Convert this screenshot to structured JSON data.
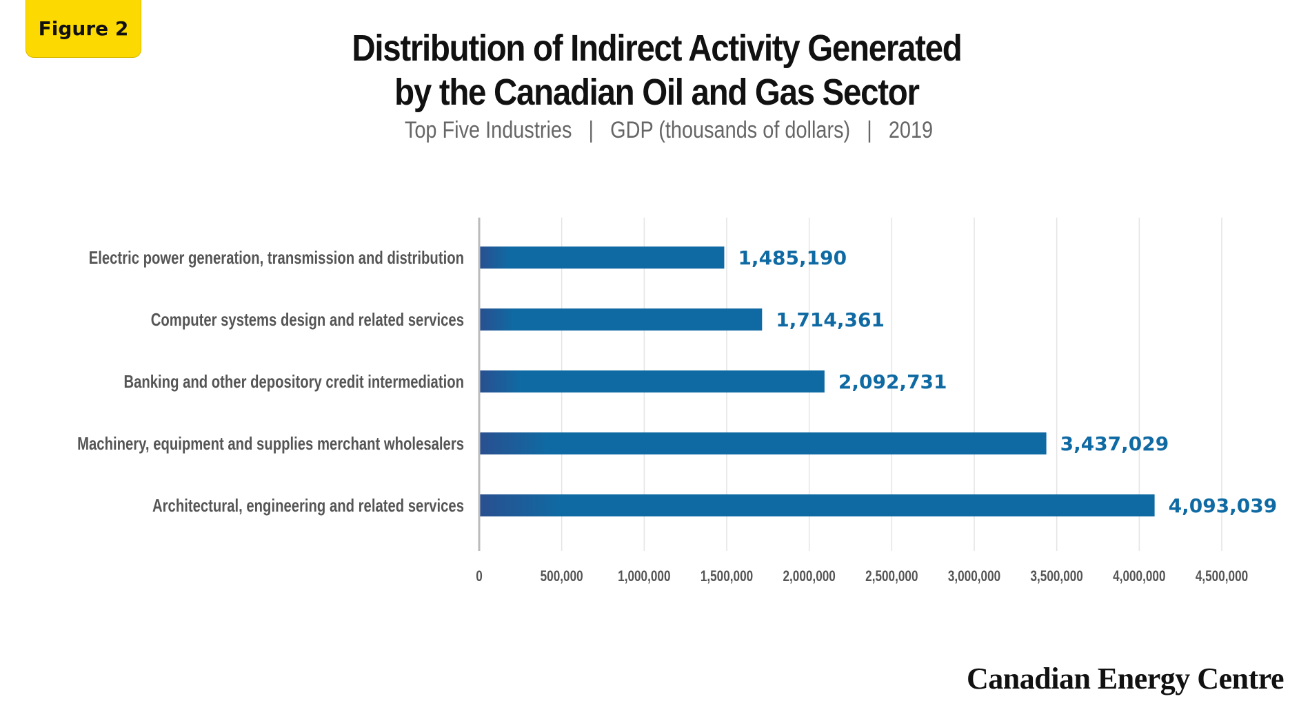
{
  "badge": "Figure 2",
  "title_line1": "Distribution of Indirect Activity Generated",
  "title_line2": "by the Canadian Oil and Gas Sector",
  "subtitle": "Top Five Industries   |   GDP (thousands of dollars)   |   2019",
  "brand": "Canadian Energy Centre",
  "chart_data": {
    "type": "bar",
    "orientation": "horizontal",
    "categories": [
      "Electric power generation, transmission and distribution",
      "Computer systems design and related services",
      "Banking and other depository credit intermediation",
      "Machinery, equipment and supplies merchant wholesalers",
      "Architectural, engineering and related services"
    ],
    "values": [
      1485190,
      1714361,
      2092731,
      3437029,
      4093039
    ],
    "value_labels": [
      "1,485,190",
      "1,714,361",
      "2,092,731",
      "3,437,029",
      "4,093,039"
    ],
    "x_ticks": [
      0,
      500000,
      1000000,
      1500000,
      2000000,
      2500000,
      3000000,
      3500000,
      4000000,
      4500000
    ],
    "x_tick_labels": [
      "0",
      "500,000",
      "1,000,000",
      "1,500,000",
      "2,000,000",
      "2,500,000",
      "3,000,000",
      "3,500,000",
      "4,000,000",
      "4,500,000"
    ],
    "xlim": [
      0,
      4500000
    ],
    "grid": true,
    "bar_color": "#0f6aa3",
    "bar_color_start": "#2a4f8f",
    "label_color": "#0f6aa3"
  }
}
